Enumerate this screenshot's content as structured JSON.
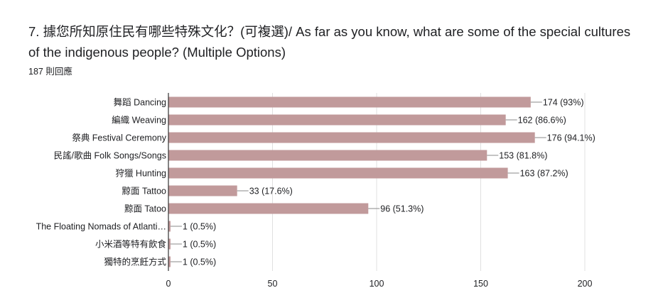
{
  "question": {
    "title": "7. 據您所知原住民有哪些特殊文化？(可複選)/ As far as you know, what are some of the special cultures of the indigenous people? (Multiple Options)",
    "response_count": "187 則回應"
  },
  "colors": {
    "bar": "#c19a9b",
    "axis": "#333333",
    "gridline": "#e0e0e0",
    "text": "#202124"
  },
  "chart_data": {
    "type": "bar",
    "orientation": "horizontal",
    "categories": [
      "舞蹈 Dancing",
      "編織 Weaving",
      "祭典 Festival Ceremony",
      "民謠/歌曲 Folk Songs/Songs",
      "狩獵 Hunting",
      "黥面 Tattoo",
      "黥面 Tatoo",
      "The Floating Nomads of Atlanti…",
      "小米酒等特有飲食",
      "獨特的烹飪方式"
    ],
    "values": [
      174,
      162,
      176,
      153,
      163,
      33,
      96,
      1,
      1,
      1
    ],
    "value_labels": [
      "174 (93%)",
      "162 (86.6%)",
      "176 (94.1%)",
      "153 (81.8%)",
      "163 (87.2%)",
      "33 (17.6%)",
      "96 (51.3%)",
      "1 (0.5%)",
      "1 (0.5%)",
      "1 (0.5%)"
    ],
    "xlim": [
      0,
      200
    ],
    "xticks": [
      "0",
      "50",
      "100",
      "150",
      "200"
    ],
    "xtick_values": [
      0,
      50,
      100,
      150,
      200
    ],
    "grid": true,
    "legend": "none"
  }
}
